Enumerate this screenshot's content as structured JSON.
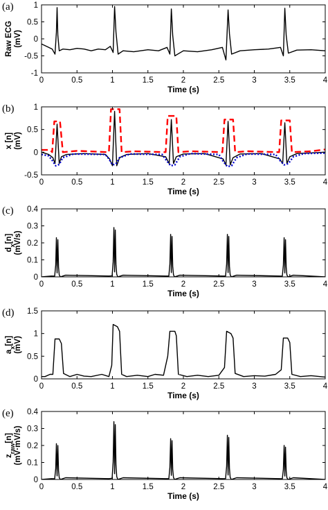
{
  "chart_data": [
    {
      "panel_label": "(a)",
      "type": "line",
      "xlabel": "Time (s)",
      "ylabel_lines": [
        "Raw ECG",
        "(mV)"
      ],
      "xlim": [
        0,
        4
      ],
      "ylim": [
        -1,
        1
      ],
      "xticks": [
        "0",
        "0.5",
        "1",
        "1.5",
        "2",
        "2.5",
        "3",
        "3.5",
        "4"
      ],
      "yticks": [
        "-1",
        "-0.5",
        "0",
        "0.5",
        "1"
      ],
      "beat_times": [
        0.22,
        1.03,
        1.83,
        2.63,
        3.43
      ],
      "series": [
        {
          "color": "#000000",
          "style": "solid",
          "x": [
            0.0,
            0.05,
            0.1,
            0.15,
            0.19,
            0.21,
            0.22,
            0.23,
            0.25,
            0.3,
            0.4,
            0.5,
            0.6,
            0.7,
            0.8,
            0.9,
            0.97,
            1.01,
            1.03,
            1.05,
            1.08,
            1.15,
            1.3,
            1.5,
            1.65,
            1.77,
            1.81,
            1.83,
            1.85,
            1.88,
            2.0,
            2.2,
            2.4,
            2.55,
            2.6,
            2.63,
            2.65,
            2.68,
            2.8,
            3.0,
            3.2,
            3.37,
            3.41,
            3.43,
            3.45,
            3.48,
            3.6,
            3.8,
            4.0
          ],
          "y": [
            -0.15,
            -0.2,
            -0.25,
            -0.3,
            -0.45,
            0.2,
            0.92,
            0.1,
            -0.35,
            -0.3,
            -0.32,
            -0.28,
            -0.3,
            -0.35,
            -0.3,
            -0.32,
            -0.22,
            -0.4,
            0.95,
            0.2,
            -0.45,
            -0.35,
            -0.38,
            -0.32,
            -0.35,
            -0.25,
            -0.45,
            0.88,
            0.1,
            -0.5,
            -0.35,
            -0.38,
            -0.32,
            -0.25,
            -0.62,
            0.85,
            0.15,
            -0.45,
            -0.35,
            -0.32,
            -0.3,
            -0.25,
            -0.5,
            0.9,
            0.1,
            -0.42,
            -0.33,
            -0.32,
            -0.35
          ]
        }
      ]
    },
    {
      "panel_label": "(b)",
      "type": "line",
      "xlabel": "Time (s)",
      "ylabel_lines": [
        "x [n]",
        "(mV)"
      ],
      "xlim": [
        0,
        4
      ],
      "ylim": [
        -0.5,
        1
      ],
      "xticks": [
        "0",
        "0.5",
        "1",
        "1.5",
        "2",
        "2.5",
        "3",
        "3.5",
        "4"
      ],
      "yticks": [
        "-0.5",
        "0",
        "0.5",
        "1"
      ],
      "beat_times": [
        0.22,
        1.03,
        1.83,
        2.63,
        3.43
      ],
      "series": [
        {
          "color": "#000000",
          "style": "solid",
          "x": [
            0.0,
            0.1,
            0.16,
            0.19,
            0.22,
            0.25,
            0.28,
            0.35,
            0.6,
            0.9,
            0.96,
            1.0,
            1.03,
            1.06,
            1.1,
            1.2,
            1.5,
            1.75,
            1.8,
            1.83,
            1.86,
            1.9,
            2.0,
            2.3,
            2.56,
            2.6,
            2.63,
            2.66,
            2.7,
            2.8,
            3.1,
            3.36,
            3.4,
            3.43,
            3.46,
            3.5,
            3.6,
            4.0
          ],
          "y": [
            0.0,
            -0.05,
            -0.12,
            -0.25,
            0.62,
            -0.25,
            -0.1,
            -0.05,
            -0.03,
            -0.05,
            -0.15,
            -0.3,
            0.9,
            -0.3,
            -0.12,
            -0.05,
            -0.03,
            -0.1,
            -0.25,
            0.72,
            -0.25,
            -0.1,
            -0.04,
            -0.03,
            -0.15,
            -0.28,
            0.68,
            -0.28,
            -0.12,
            -0.04,
            -0.03,
            -0.15,
            -0.25,
            0.65,
            -0.25,
            -0.1,
            -0.03,
            0.0
          ]
        },
        {
          "color": "#ff0000",
          "style": "dashed",
          "x": [
            0.0,
            0.12,
            0.15,
            0.18,
            0.26,
            0.3,
            0.5,
            0.95,
            0.98,
            1.1,
            1.13,
            1.3,
            1.75,
            1.78,
            1.9,
            1.93,
            2.1,
            2.55,
            2.58,
            2.7,
            2.73,
            2.9,
            3.35,
            3.38,
            3.5,
            3.53,
            3.8,
            4.0
          ],
          "y": [
            0.05,
            0.05,
            0.0,
            0.68,
            0.68,
            0.0,
            0.03,
            0.0,
            0.95,
            0.95,
            0.0,
            0.02,
            0.0,
            0.8,
            0.8,
            0.0,
            0.02,
            0.0,
            0.72,
            0.72,
            0.0,
            0.02,
            0.0,
            0.7,
            0.7,
            0.0,
            0.02,
            0.06
          ]
        },
        {
          "color": "#0000cc",
          "style": "dotted",
          "x": [
            0.0,
            0.1,
            0.15,
            0.2,
            0.25,
            0.3,
            0.45,
            0.9,
            0.95,
            1.0,
            1.05,
            1.1,
            1.25,
            1.7,
            1.76,
            1.82,
            1.88,
            1.95,
            2.1,
            2.5,
            2.56,
            2.62,
            2.68,
            2.75,
            2.9,
            3.3,
            3.36,
            3.42,
            3.48,
            3.55,
            3.7,
            4.0
          ],
          "y": [
            -0.05,
            -0.08,
            -0.18,
            -0.3,
            -0.27,
            -0.12,
            -0.04,
            -0.05,
            -0.15,
            -0.28,
            -0.26,
            -0.12,
            -0.04,
            -0.05,
            -0.18,
            -0.3,
            -0.28,
            -0.1,
            -0.03,
            -0.05,
            -0.2,
            -0.32,
            -0.3,
            -0.12,
            -0.04,
            -0.05,
            -0.18,
            -0.28,
            -0.25,
            -0.1,
            -0.03,
            -0.02
          ]
        }
      ]
    },
    {
      "panel_label": "(c)",
      "type": "line",
      "xlabel": "Time (s)",
      "ylabel_lines": [
        "d_x[n]",
        "(mV/s)"
      ],
      "xlim": [
        0,
        4
      ],
      "ylim": [
        0,
        0.4
      ],
      "xticks": [
        "0",
        "0.5",
        "1",
        "1.5",
        "2",
        "2.5",
        "3",
        "3.5",
        "4"
      ],
      "yticks": [
        "0",
        "0.1",
        "0.2",
        "0.3",
        "0.4"
      ],
      "beat_times": [
        0.22,
        1.03,
        1.83,
        2.63,
        3.43
      ],
      "beat_peaks": [
        0.23,
        0.29,
        0.25,
        0.25,
        0.23
      ],
      "series": [
        {
          "color": "#000000",
          "style": "solid",
          "x": [],
          "y": []
        }
      ]
    },
    {
      "panel_label": "(d)",
      "type": "line",
      "xlabel": "Time (s)",
      "ylabel_lines": [
        "a_x[n]",
        "(mV)"
      ],
      "xlim": [
        0,
        4
      ],
      "ylim": [
        0,
        1.5
      ],
      "xticks": [
        "0",
        "0.5",
        "1",
        "1.5",
        "2",
        "2.5",
        "3",
        "3.5",
        "4"
      ],
      "yticks": [
        "0",
        "0.5",
        "1",
        "1.5"
      ],
      "series": [
        {
          "color": "#000000",
          "style": "solid",
          "x": [
            0.0,
            0.05,
            0.12,
            0.16,
            0.19,
            0.25,
            0.28,
            0.31,
            0.4,
            0.5,
            0.6,
            0.7,
            0.85,
            0.95,
            0.99,
            1.01,
            1.07,
            1.1,
            1.13,
            1.2,
            1.35,
            1.5,
            1.6,
            1.72,
            1.78,
            1.81,
            1.88,
            1.9,
            1.93,
            2.05,
            2.2,
            2.35,
            2.5,
            2.58,
            2.61,
            2.67,
            2.7,
            2.73,
            2.85,
            3.0,
            3.15,
            3.3,
            3.38,
            3.41,
            3.47,
            3.5,
            3.53,
            3.65,
            3.8,
            4.0
          ],
          "y": [
            0.05,
            0.05,
            0.1,
            0.1,
            0.88,
            0.88,
            0.78,
            0.12,
            0.05,
            0.1,
            0.06,
            0.05,
            0.1,
            0.05,
            0.3,
            1.2,
            1.15,
            1.05,
            0.1,
            0.05,
            0.08,
            0.05,
            0.1,
            0.08,
            0.5,
            1.05,
            1.05,
            0.95,
            0.1,
            0.05,
            0.08,
            0.05,
            0.08,
            0.25,
            1.05,
            1.0,
            0.9,
            0.12,
            0.05,
            0.07,
            0.06,
            0.1,
            0.2,
            0.9,
            0.9,
            0.8,
            0.1,
            0.05,
            0.07,
            0.04
          ]
        }
      ]
    },
    {
      "panel_label": "(e)",
      "type": "line",
      "xlabel": "Time (s)",
      "ylabel_lines": [
        "z_raw[n]",
        "(mV·mV/s)"
      ],
      "xlim": [
        0,
        4
      ],
      "ylim": [
        0,
        0.4
      ],
      "xticks": [
        "0",
        "0.5",
        "1",
        "1.5",
        "2",
        "2.5",
        "3",
        "3.5",
        "4"
      ],
      "yticks": [
        "0",
        "0.1",
        "0.2",
        "0.3",
        "0.4"
      ],
      "beat_times": [
        0.22,
        1.03,
        1.83,
        2.63,
        3.43
      ],
      "beat_peaks": [
        0.21,
        0.34,
        0.24,
        0.26,
        0.2
      ],
      "series": [
        {
          "color": "#000000",
          "style": "solid",
          "x": [],
          "y": []
        }
      ]
    }
  ]
}
